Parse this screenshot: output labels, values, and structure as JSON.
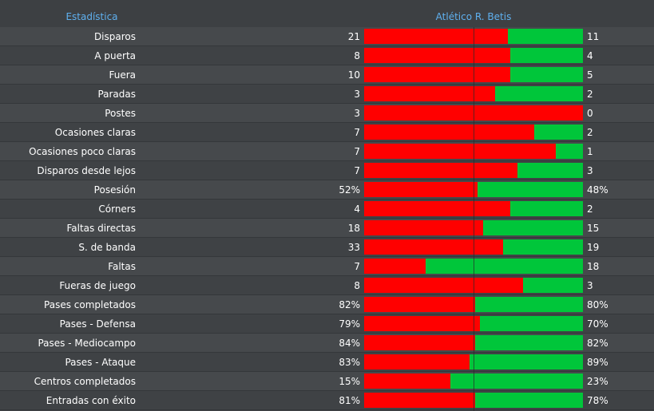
{
  "header": {
    "stat_title": "Estadística",
    "team_title": "Atlético R. Betis"
  },
  "colors": {
    "home": "#ff0000",
    "away": "#00c63a",
    "header_text": "#5fb0ef"
  },
  "stats": [
    {
      "label": "Disparos",
      "home": "21",
      "away": "11",
      "home_share": 0.656
    },
    {
      "label": "A puerta",
      "home": "8",
      "away": "4",
      "home_share": 0.667
    },
    {
      "label": "Fuera",
      "home": "10",
      "away": "5",
      "home_share": 0.667
    },
    {
      "label": "Paradas",
      "home": "3",
      "away": "2",
      "home_share": 0.6
    },
    {
      "label": "Postes",
      "home": "3",
      "away": "0",
      "home_share": 1.0
    },
    {
      "label": "Ocasiones claras",
      "home": "7",
      "away": "2",
      "home_share": 0.778
    },
    {
      "label": "Ocasiones poco claras",
      "home": "7",
      "away": "1",
      "home_share": 0.875
    },
    {
      "label": "Disparos desde lejos",
      "home": "7",
      "away": "3",
      "home_share": 0.7
    },
    {
      "label": "Posesión",
      "home": "52%",
      "away": "48%",
      "home_share": 0.52
    },
    {
      "label": "Córners",
      "home": "4",
      "away": "2",
      "home_share": 0.667
    },
    {
      "label": "Faltas directas",
      "home": "18",
      "away": "15",
      "home_share": 0.545
    },
    {
      "label": "S. de banda",
      "home": "33",
      "away": "19",
      "home_share": 0.635
    },
    {
      "label": "Faltas",
      "home": "7",
      "away": "18",
      "home_share": 0.28
    },
    {
      "label": "Fueras de juego",
      "home": "8",
      "away": "3",
      "home_share": 0.727
    },
    {
      "label": "Pases completados",
      "home": "82%",
      "away": "80%",
      "home_share": 0.506
    },
    {
      "label": "Pases - Defensa",
      "home": "79%",
      "away": "70%",
      "home_share": 0.53
    },
    {
      "label": "Pases - Mediocampo",
      "home": "84%",
      "away": "82%",
      "home_share": 0.506
    },
    {
      "label": "Pases - Ataque",
      "home": "83%",
      "away": "89%",
      "home_share": 0.483
    },
    {
      "label": "Centros completados",
      "home": "15%",
      "away": "23%",
      "home_share": 0.395
    },
    {
      "label": "Entradas con éxito",
      "home": "81%",
      "away": "78%",
      "home_share": 0.509
    }
  ]
}
